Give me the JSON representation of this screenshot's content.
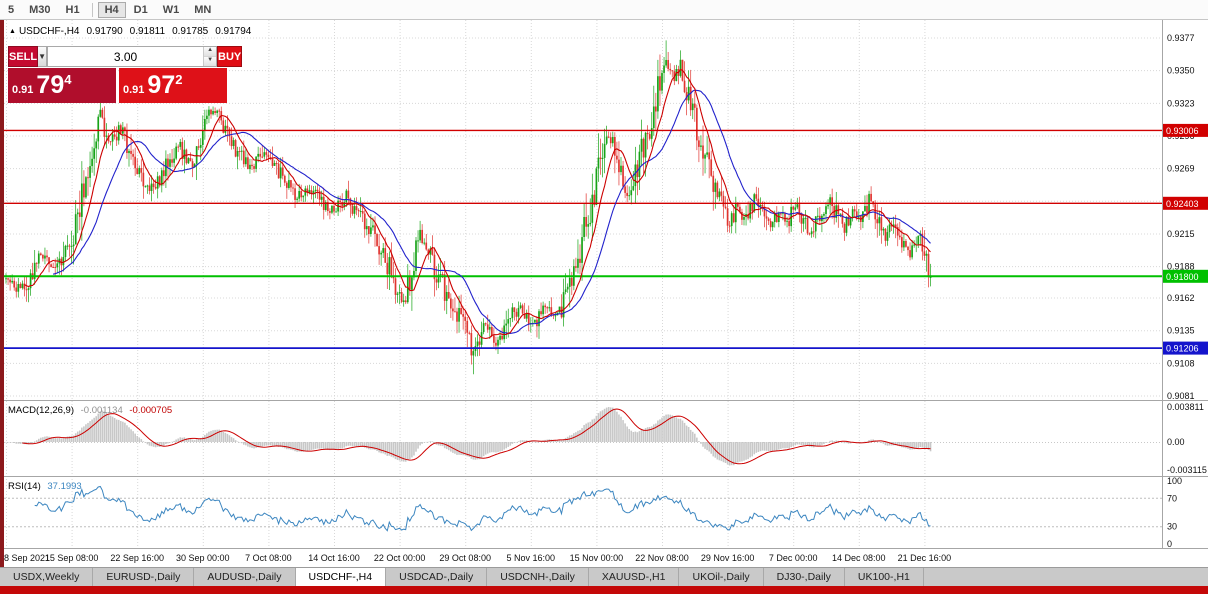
{
  "toolbar": {
    "timeframes": [
      {
        "label": "5"
      },
      {
        "label": "M30"
      },
      {
        "label": "H1"
      },
      {
        "label": "H4",
        "active": true,
        "sep_before": true
      },
      {
        "label": "D1"
      },
      {
        "label": "W1"
      },
      {
        "label": "MN"
      }
    ]
  },
  "chart_header": {
    "symbol": "USDCHF-,H4",
    "open": "0.91790",
    "high": "0.91811",
    "low": "0.91785",
    "close": "0.91794"
  },
  "trade_panel": {
    "sell_label": "SELL",
    "buy_label": "BUY",
    "volume": "3.00",
    "sell_price": {
      "prefix": "0.91",
      "big": "79",
      "sup": "4"
    },
    "buy_price": {
      "prefix": "0.91",
      "big": "97",
      "sup": "2"
    }
  },
  "price_axis": {
    "labels": [
      {
        "text": "0.9377",
        "price": 0.9377
      },
      {
        "text": "0.9350",
        "price": 0.935
      },
      {
        "text": "0.9323",
        "price": 0.9323
      },
      {
        "text": "0.9296",
        "price": 0.9296
      },
      {
        "text": "0.9269",
        "price": 0.9269
      },
      {
        "text": "0.9215",
        "price": 0.9215
      },
      {
        "text": "0.9188",
        "price": 0.9188
      },
      {
        "text": "0.9162",
        "price": 0.9162
      },
      {
        "text": "0.9135",
        "price": 0.9135
      },
      {
        "text": "0.9108",
        "price": 0.9108
      },
      {
        "text": "0.9081",
        "price": 0.9081
      }
    ],
    "levels": [
      {
        "text": "0.93006",
        "price": 0.93006,
        "color": "#D10000",
        "line_width": 1.4
      },
      {
        "text": "0.92403",
        "price": 0.92403,
        "color": "#D10000",
        "line_width": 1.4
      },
      {
        "text": "0.91800",
        "price": 0.918,
        "color": "#00C000",
        "line_width": 2
      },
      {
        "text": "0.91206",
        "price": 0.91206,
        "color": "#1414CC",
        "line_width": 1.8
      }
    ]
  },
  "macd": {
    "label": "MACD(12,26,9)",
    "value1": "-0.001134",
    "value2": "-0.000705",
    "axis": [
      "0.003811",
      "0.00",
      "-0.003115"
    ]
  },
  "rsi": {
    "label": "RSI(14)",
    "value": "37.1993",
    "axis": [
      "100",
      "70",
      "30",
      "0"
    ]
  },
  "time_axis": [
    {
      "bar": 0,
      "label": "8 Sep 2021"
    },
    {
      "bar": 32,
      "label": "15 Sep 08:00"
    },
    {
      "bar": 64,
      "label": "22 Sep 16:00"
    },
    {
      "bar": 96,
      "label": "30 Sep 00:00"
    },
    {
      "bar": 128,
      "label": "7 Oct 08:00"
    },
    {
      "bar": 160,
      "label": "14 Oct 16:00"
    },
    {
      "bar": 192,
      "label": "22 Oct 00:00"
    },
    {
      "bar": 224,
      "label": "29 Oct 08:00"
    },
    {
      "bar": 256,
      "label": "5 Nov 16:00"
    },
    {
      "bar": 288,
      "label": "15 Nov 00:00"
    },
    {
      "bar": 320,
      "label": "22 Nov 08:00"
    },
    {
      "bar": 352,
      "label": "29 Nov 16:00"
    },
    {
      "bar": 384,
      "label": "7 Dec 00:00"
    },
    {
      "bar": 416,
      "label": "14 Dec 08:00"
    },
    {
      "bar": 448,
      "label": "21 Dec 16:00"
    }
  ],
  "tabs": [
    {
      "label": "USDX,Weekly"
    },
    {
      "label": "EURUSD-,Daily"
    },
    {
      "label": "AUDUSD-,Daily"
    },
    {
      "label": "USDCHF-,H4",
      "active": true
    },
    {
      "label": "USDCAD-,Daily"
    },
    {
      "label": "USDCNH-,Daily"
    },
    {
      "label": "XAUUSD-,H1"
    },
    {
      "label": "UKOil-,Daily"
    },
    {
      "label": "DJ30-,Daily"
    },
    {
      "label": "UK100-,H1"
    }
  ],
  "chart_data": {
    "type": "candlestick",
    "symbol": "USDCHF",
    "timeframe": "H4",
    "title": "USDCHF-,H4",
    "bar_count": 452,
    "seed": 11,
    "last_close": 0.91794,
    "ylim": [
      0.90777,
      0.93919
    ],
    "grid_prices": [
      0.9377,
      0.935,
      0.9323,
      0.9296,
      0.9269,
      0.9242,
      0.9215,
      0.9188,
      0.9162,
      0.9135,
      0.9108,
      0.9081
    ],
    "horizontal_levels": [
      0.93006,
      0.92403,
      0.918,
      0.91206
    ],
    "price_path": [
      [
        0,
        0.9178
      ],
      [
        8,
        0.9168
      ],
      [
        16,
        0.9196
      ],
      [
        24,
        0.9186
      ],
      [
        32,
        0.9212
      ],
      [
        40,
        0.9268
      ],
      [
        46,
        0.9315
      ],
      [
        50,
        0.9288
      ],
      [
        56,
        0.9302
      ],
      [
        62,
        0.9278
      ],
      [
        68,
        0.9252
      ],
      [
        76,
        0.9262
      ],
      [
        84,
        0.929
      ],
      [
        90,
        0.9272
      ],
      [
        97,
        0.9308
      ],
      [
        102,
        0.9316
      ],
      [
        108,
        0.93
      ],
      [
        114,
        0.928
      ],
      [
        120,
        0.9268
      ],
      [
        127,
        0.9284
      ],
      [
        134,
        0.9264
      ],
      [
        141,
        0.9246
      ],
      [
        148,
        0.9254
      ],
      [
        155,
        0.9242
      ],
      [
        160,
        0.9233
      ],
      [
        166,
        0.9246
      ],
      [
        172,
        0.923
      ],
      [
        178,
        0.9218
      ],
      [
        184,
        0.9198
      ],
      [
        190,
        0.9172
      ],
      [
        194,
        0.916
      ],
      [
        198,
        0.9188
      ],
      [
        202,
        0.9212
      ],
      [
        207,
        0.9196
      ],
      [
        213,
        0.9172
      ],
      [
        219,
        0.9152
      ],
      [
        224,
        0.9136
      ],
      [
        228,
        0.9114
      ],
      [
        233,
        0.914
      ],
      [
        239,
        0.9124
      ],
      [
        245,
        0.9146
      ],
      [
        251,
        0.9156
      ],
      [
        257,
        0.9138
      ],
      [
        263,
        0.9152
      ],
      [
        269,
        0.9146
      ],
      [
        274,
        0.9168
      ],
      [
        279,
        0.9196
      ],
      [
        284,
        0.923
      ],
      [
        289,
        0.927
      ],
      [
        294,
        0.9298
      ],
      [
        299,
        0.9268
      ],
      [
        303,
        0.9245
      ],
      [
        307,
        0.9264
      ],
      [
        311,
        0.929
      ],
      [
        315,
        0.9312
      ],
      [
        319,
        0.9342
      ],
      [
        322,
        0.936
      ],
      [
        325,
        0.9344
      ],
      [
        329,
        0.9352
      ],
      [
        333,
        0.9325
      ],
      [
        337,
        0.9302
      ],
      [
        341,
        0.9282
      ],
      [
        345,
        0.9256
      ],
      [
        349,
        0.9238
      ],
      [
        353,
        0.9221
      ],
      [
        357,
        0.9238
      ],
      [
        361,
        0.9226
      ],
      [
        365,
        0.9244
      ],
      [
        369,
        0.9234
      ],
      [
        373,
        0.922
      ],
      [
        377,
        0.9234
      ],
      [
        381,
        0.9224
      ],
      [
        385,
        0.924
      ],
      [
        389,
        0.9228
      ],
      [
        393,
        0.9214
      ],
      [
        397,
        0.923
      ],
      [
        401,
        0.9243
      ],
      [
        405,
        0.9232
      ],
      [
        409,
        0.922
      ],
      [
        413,
        0.9234
      ],
      [
        417,
        0.9224
      ],
      [
        421,
        0.9244
      ],
      [
        425,
        0.9232
      ],
      [
        429,
        0.9214
      ],
      [
        433,
        0.9226
      ],
      [
        437,
        0.9209
      ],
      [
        441,
        0.9199
      ],
      [
        445,
        0.9214
      ],
      [
        448,
        0.92
      ],
      [
        451,
        0.91794
      ]
    ],
    "spikes": [
      {
        "bar": 46,
        "high": 0.9343
      },
      {
        "bar": 228,
        "low": 0.9099
      },
      {
        "bar": 322,
        "high": 0.9375
      }
    ],
    "indicators": {
      "ma_fast_period": 10,
      "ma_slow_period": 24,
      "macd_params": [
        12,
        26,
        9
      ],
      "macd_last": -0.001134,
      "macd_signal_last": -0.000705,
      "rsi_period": 14,
      "rsi_last": 37.1993,
      "rsi_levels": [
        70,
        30
      ]
    },
    "colors": {
      "up": "#17A317",
      "down": "#E03530",
      "ma_fast": "#CC0000",
      "ma_slow": "#2222CC",
      "macd_hist": "#C8C8C8",
      "macd_signal": "#CC0000",
      "rsi": "#3C86C0"
    }
  }
}
